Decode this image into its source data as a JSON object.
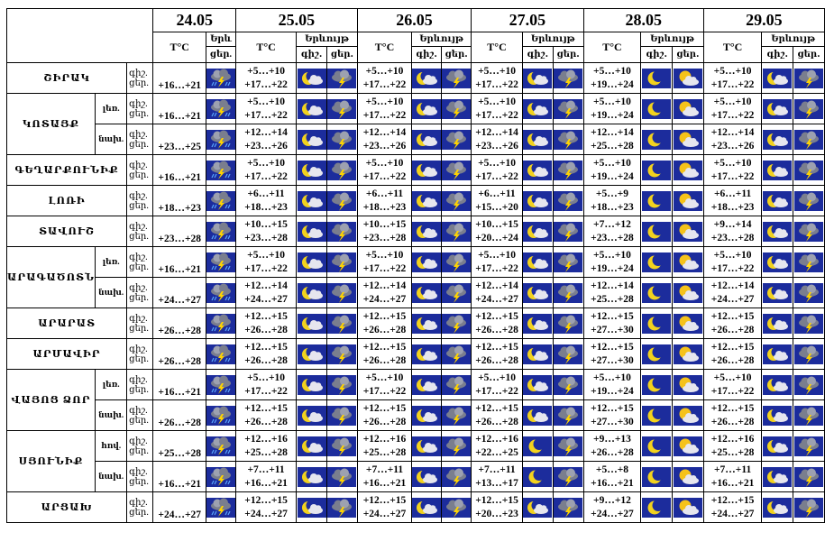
{
  "header": {
    "dates": [
      "24.05",
      "25.05",
      "26.05",
      "27.05",
      "28.05",
      "29.05"
    ],
    "temp_label": "T°C",
    "phenomena_label": "Երևույթ",
    "phenomena_label_first": "Երև",
    "night_label": "գիշ.",
    "day_label": "ցեր.",
    "night_label_dot": "գիշ․",
    "day_label_dot": "ցեր․"
  },
  "regions": [
    {
      "name": "ՇԻՐԱԿ",
      "zones": [
        {
          "zone": "",
          "day0": "+16…+21",
          "temps": [
            [
              "+5…+10",
              "+17…+22"
            ],
            [
              "+5…+10",
              "+17…+22"
            ],
            [
              "+5…+10",
              "+17…+22"
            ],
            [
              "+5…+10",
              "+19…+24"
            ],
            [
              "+5…+10",
              "+17…+22"
            ]
          ]
        }
      ]
    },
    {
      "name": "ԿՈՏԱՅՔ",
      "zones": [
        {
          "zone": "լեռ.",
          "day0": "+16…+21",
          "temps": [
            [
              "+5…+10",
              "+17…+22"
            ],
            [
              "+5…+10",
              "+17…+22"
            ],
            [
              "+5…+10",
              "+17…+22"
            ],
            [
              "+5…+10",
              "+19…+24"
            ],
            [
              "+5…+10",
              "+17…+22"
            ]
          ]
        },
        {
          "zone": "նախ.",
          "day0": "+23…+25",
          "temps": [
            [
              "+12…+14",
              "+23…+26"
            ],
            [
              "+12…+14",
              "+23…+26"
            ],
            [
              "+12…+14",
              "+23…+26"
            ],
            [
              "+12…+14",
              "+25…+28"
            ],
            [
              "+12…+14",
              "+23…+26"
            ]
          ]
        }
      ]
    },
    {
      "name": "ԳԵՂԱՐՔՈՒՆԻՔ",
      "zones": [
        {
          "zone": "",
          "day0": "+16…+21",
          "temps": [
            [
              "+5…+10",
              "+17…+22"
            ],
            [
              "+5…+10",
              "+17…+22"
            ],
            [
              "+5…+10",
              "+17…+22"
            ],
            [
              "+5…+10",
              "+19…+24"
            ],
            [
              "+5…+10",
              "+17…+22"
            ]
          ]
        }
      ]
    },
    {
      "name": "ԼՈՌԻ",
      "zones": [
        {
          "zone": "",
          "day0": "+18…+23",
          "temps": [
            [
              "+6…+11",
              "+18…+23"
            ],
            [
              "+6…+11",
              "+18…+23"
            ],
            [
              "+6…+11",
              "+15…+20"
            ],
            [
              "+5…+9",
              "+18…+23"
            ],
            [
              "+6…+11",
              "+18…+23"
            ]
          ]
        }
      ]
    },
    {
      "name": "ՏԱՎՈՒՇ",
      "zones": [
        {
          "zone": "",
          "day0": "+23…+28",
          "temps": [
            [
              "+10…+15",
              "+23…+28"
            ],
            [
              "+10…+15",
              "+23…+28"
            ],
            [
              "+10…+15",
              "+20…+24"
            ],
            [
              "+7…+12",
              "+23…+28"
            ],
            [
              "+9…+14",
              "+23…+28"
            ]
          ]
        }
      ]
    },
    {
      "name": "ԱՐԱԳԱԾՈՏՆ",
      "zones": [
        {
          "zone": "լեռ.",
          "day0": "+16…+21",
          "temps": [
            [
              "+5…+10",
              "+17…+22"
            ],
            [
              "+5…+10",
              "+17…+22"
            ],
            [
              "+5…+10",
              "+17…+22"
            ],
            [
              "+5…+10",
              "+19…+24"
            ],
            [
              "+5…+10",
              "+17…+22"
            ]
          ]
        },
        {
          "zone": "նախ.",
          "day0": "+24…+27",
          "temps": [
            [
              "+12…+14",
              "+24…+27"
            ],
            [
              "+12…+14",
              "+24…+27"
            ],
            [
              "+12…+14",
              "+24…+27"
            ],
            [
              "+12…+14",
              "+25…+28"
            ],
            [
              "+12…+14",
              "+24…+27"
            ]
          ]
        }
      ]
    },
    {
      "name": "ԱՐԱՐԱՏ",
      "zones": [
        {
          "zone": "",
          "day0": "+26…+28",
          "temps": [
            [
              "+12…+15",
              "+26…+28"
            ],
            [
              "+12…+15",
              "+26…+28"
            ],
            [
              "+12…+15",
              "+26…+28"
            ],
            [
              "+12…+15",
              "+27…+30"
            ],
            [
              "+12…+15",
              "+26…+28"
            ]
          ]
        }
      ]
    },
    {
      "name": "ԱՐՄԱՎԻՐ",
      "zones": [
        {
          "zone": "",
          "day0": "+26…+28",
          "temps": [
            [
              "+12…+15",
              "+26…+28"
            ],
            [
              "+12…+15",
              "+26…+28"
            ],
            [
              "+12…+15",
              "+26…+28"
            ],
            [
              "+12…+15",
              "+27…+30"
            ],
            [
              "+12…+15",
              "+26…+28"
            ]
          ]
        }
      ]
    },
    {
      "name": "ՎԱՅՈՑ ՁՈՐ",
      "zones": [
        {
          "zone": "լեռ.",
          "day0": "+16…+21",
          "temps": [
            [
              "+5…+10",
              "+17…+22"
            ],
            [
              "+5…+10",
              "+17…+22"
            ],
            [
              "+5…+10",
              "+17…+22"
            ],
            [
              "+5…+10",
              "+19…+24"
            ],
            [
              "+5…+10",
              "+17…+22"
            ]
          ]
        },
        {
          "zone": "նախ.",
          "day0": "+26…+28",
          "temps": [
            [
              "+12…+15",
              "+26…+28"
            ],
            [
              "+12…+15",
              "+26…+28"
            ],
            [
              "+12…+15",
              "+26…+28"
            ],
            [
              "+12…+15",
              "+27…+30"
            ],
            [
              "+12…+15",
              "+26…+28"
            ]
          ]
        }
      ]
    },
    {
      "name": "ՍՅՈՒՆԻՔ",
      "zones": [
        {
          "zone": "հով.",
          "day0": "+25…+28",
          "temps": [
            [
              "+12…+16",
              "+25…+28"
            ],
            [
              "+12…+16",
              "+25…+28"
            ],
            [
              "+12…+16",
              "+22…+25"
            ],
            [
              "+9…+13",
              "+26…+28"
            ],
            [
              "+12…+16",
              "+25…+28"
            ]
          ]
        },
        {
          "zone": "նախ.",
          "day0": "+16…+21",
          "temps": [
            [
              "+7…+11",
              "+16…+21"
            ],
            [
              "+7…+11",
              "+16…+21"
            ],
            [
              "+7…+11",
              "+13…+17"
            ],
            [
              "+5…+8",
              "+16…+21"
            ],
            [
              "+7…+11",
              "+16…+21"
            ]
          ]
        }
      ]
    },
    {
      "name": "ԱՐՑԱԽ",
      "zones": [
        {
          "zone": "",
          "day0": "+24…+27",
          "temps": [
            [
              "+12…+15",
              "+24…+27"
            ],
            [
              "+12…+15",
              "+24…+27"
            ],
            [
              "+12…+15",
              "+20…+23"
            ],
            [
              "+9…+12",
              "+24…+27"
            ],
            [
              "+12…+15",
              "+24…+27"
            ]
          ]
        }
      ]
    }
  ],
  "icons": {
    "d0": "cloud-rain-lightning-icon",
    "night": "moon-cloud-icon",
    "night_d27": "moon-icon",
    "day": "cloud-lightning-icon",
    "day_d28": "sun-cloud-icon",
    "d27_night_icons": [
      "moon-cloud-icon",
      "moon-cloud-icon",
      "moon-cloud-icon",
      "moon-cloud-icon",
      "moon-cloud-icon",
      "moon-cloud-icon",
      "moon-cloud-icon",
      "moon-cloud-icon",
      "moon-cloud-icon",
      "moon-cloud-icon",
      "moon-cloud-icon",
      "moon-cloud-icon",
      "moon-icon",
      "moon-icon",
      "moon-cloud-icon"
    ],
    "d28_night_icon": "moon-icon",
    "d28_day_icon": "sun-cloud-icon",
    "d28_day_rain_icon": "sun-rain-icon"
  },
  "colors": {
    "icon_bg": "#1c2c9c",
    "moon": "#f2d21e",
    "cloud": "#e6e6ee",
    "dark_cloud": "#7a7e8e",
    "lightning": "#ffd400",
    "rain": "#5aa8ff",
    "sun": "#f5c21a"
  }
}
